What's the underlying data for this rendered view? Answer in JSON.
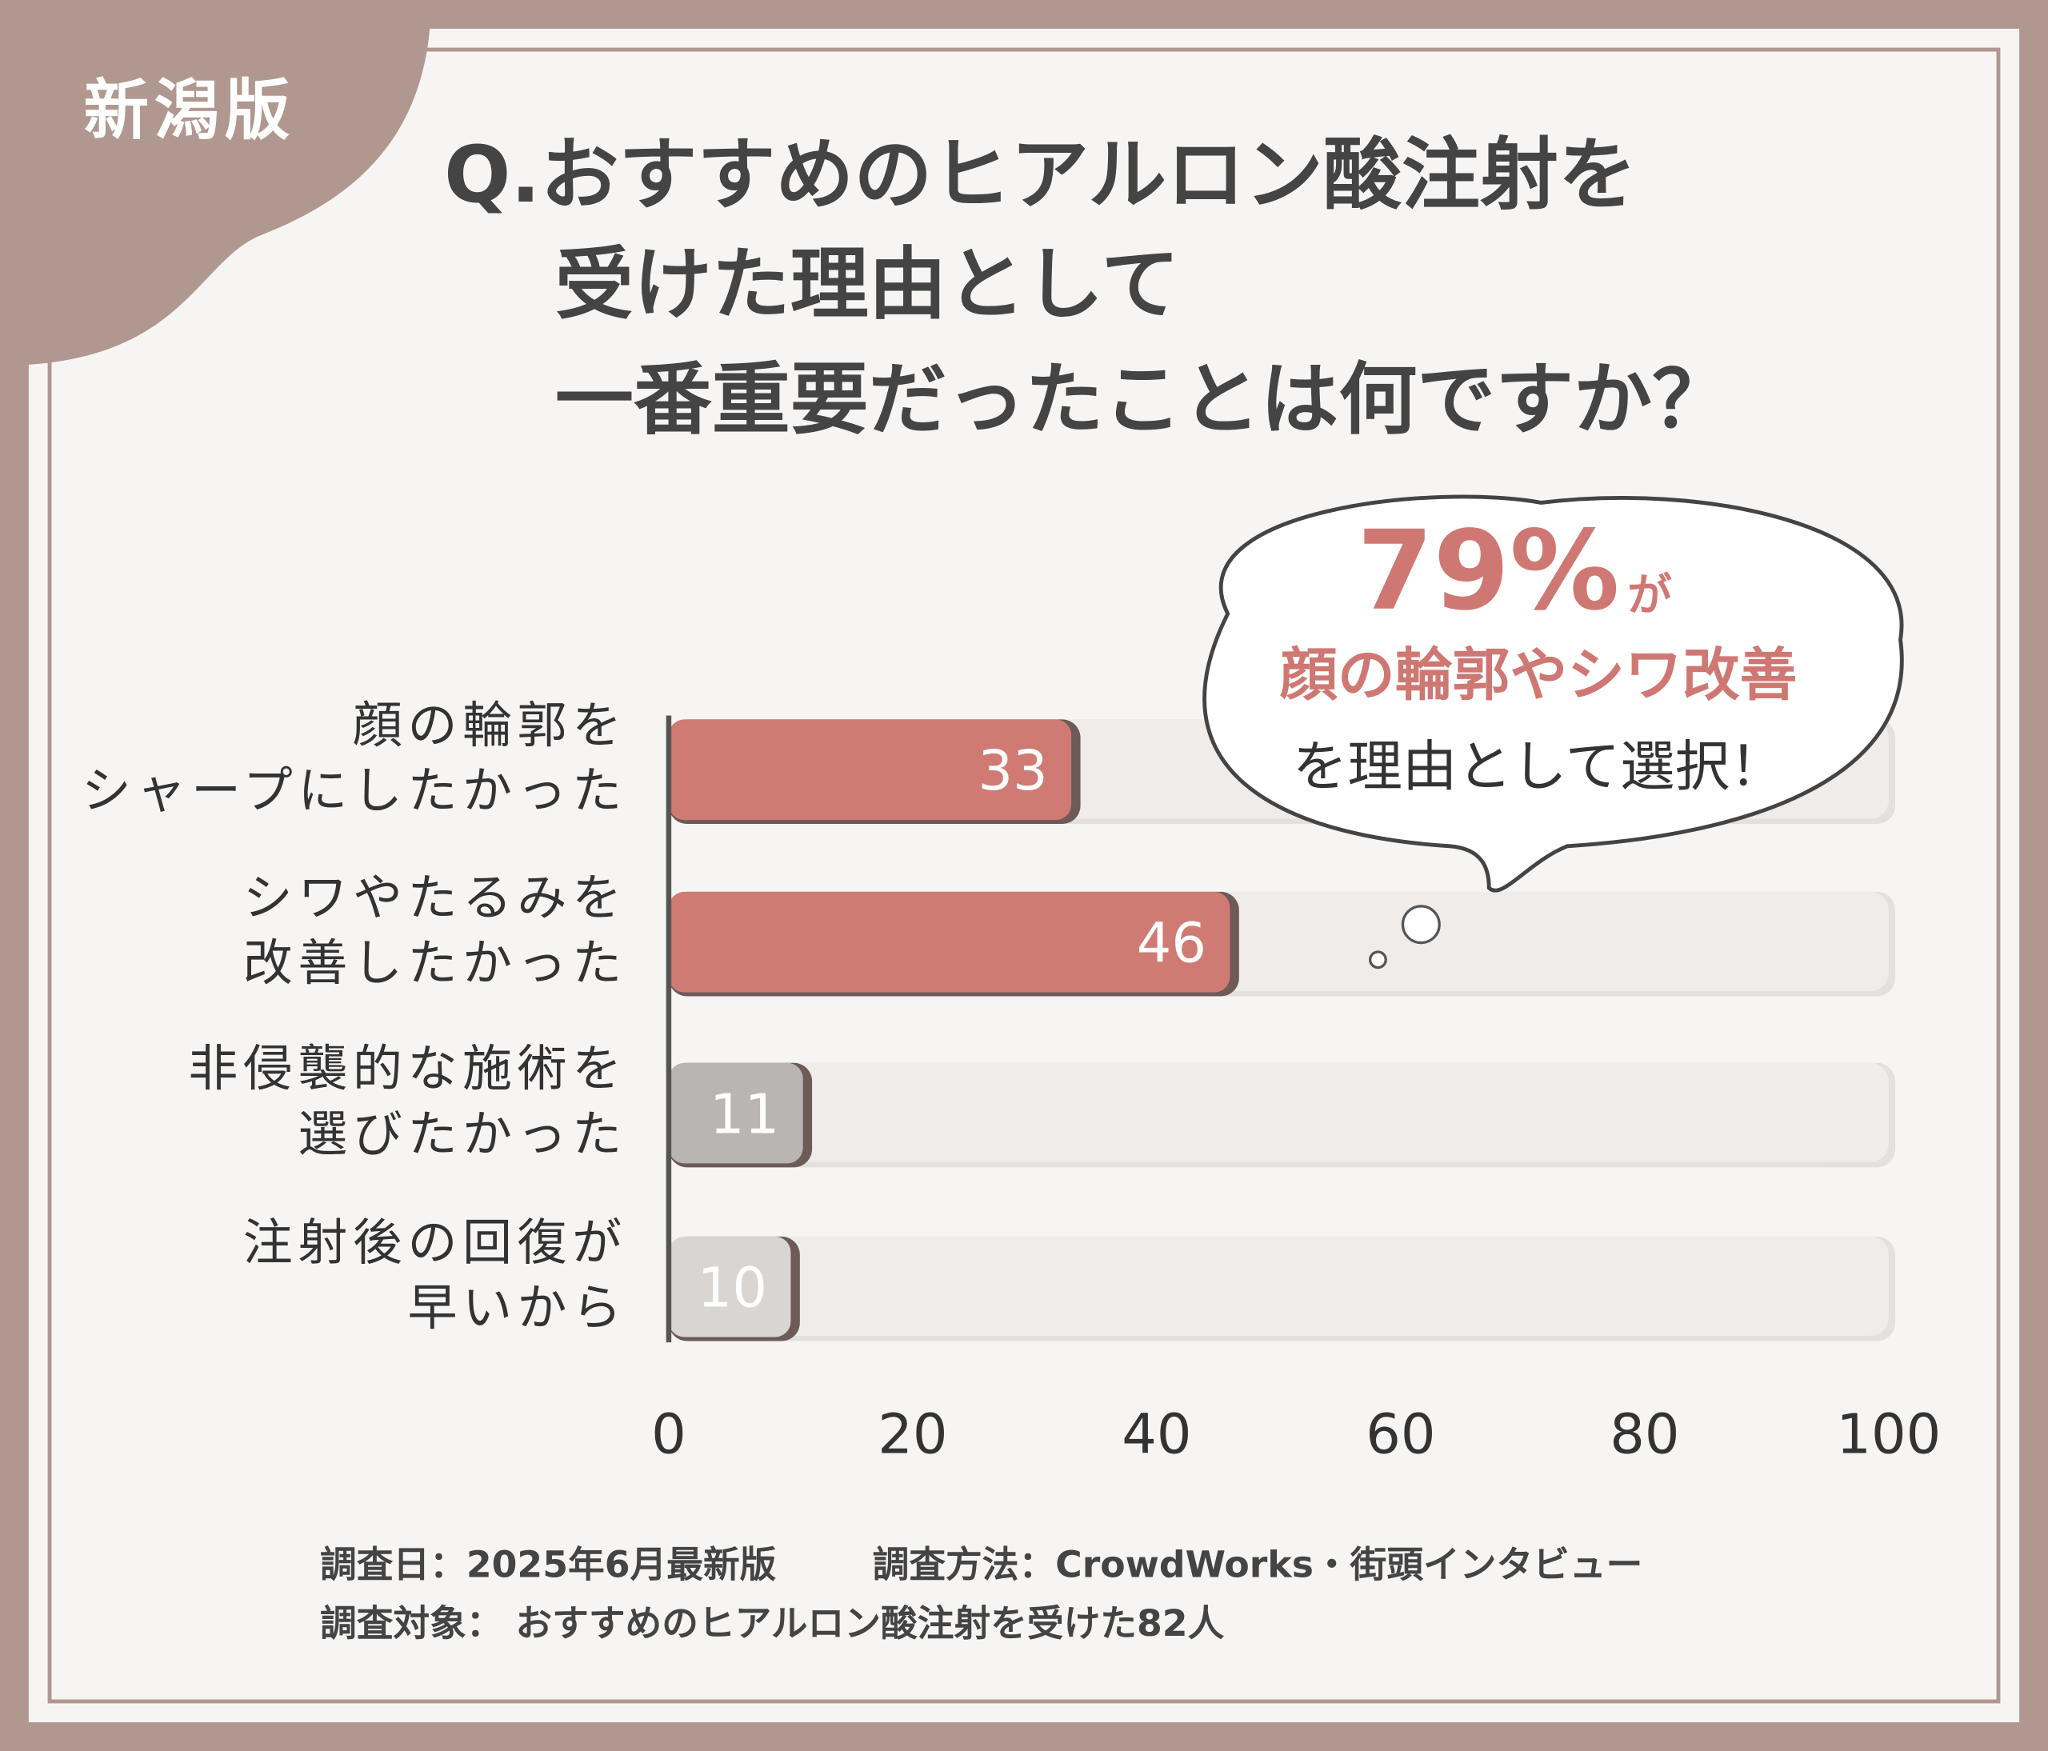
{
  "badge": "新潟版",
  "chart_data": {
    "type": "hbar",
    "title": [
      "Q.おすすめのヒアルロン酸注射を",
      "受けた理由として",
      "一番重要だったことは何ですか？"
    ],
    "categories": [
      [
        "顔の輪郭を",
        "シャープにしたかった"
      ],
      [
        "シワやたるみを",
        "改善したかった"
      ],
      [
        "非侵襲的な施術を",
        "選びたかった"
      ],
      [
        "注射後の回復が",
        "早いから"
      ]
    ],
    "values": [
      33,
      46,
      11,
      10
    ],
    "colors": [
      "#d07a74",
      "#d07a74",
      "#b9b5b3",
      "#d8d5d3"
    ],
    "xlim": [
      0,
      100
    ],
    "xticks": [
      0,
      20,
      40,
      60,
      80,
      100
    ],
    "annotation": {
      "highlight": "79%",
      "particle": "が",
      "line2": "顔の輪郭やシワ改善",
      "line3": "を理由として選択！"
    }
  },
  "footer": {
    "date": "調査日：2025年6月最新版",
    "method": "調査方法：CrowdWorks・街頭インタビュー",
    "target": "調査対象： おすすめのヒアルロン酸注射を受けた82人"
  }
}
